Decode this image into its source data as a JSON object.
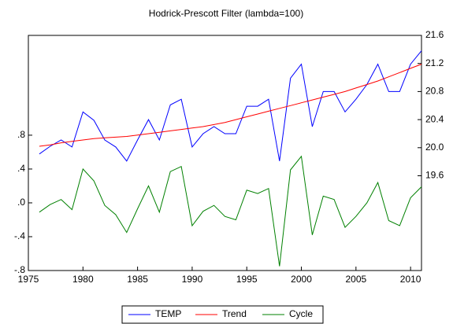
{
  "chart_data": {
    "type": "line",
    "title": "Hodrick-Prescott Filter (lambda=100)",
    "x": [
      1976,
      1977,
      1978,
      1979,
      1980,
      1981,
      1982,
      1983,
      1984,
      1985,
      1986,
      1987,
      1988,
      1989,
      1990,
      1991,
      1992,
      1993,
      1994,
      1995,
      1996,
      1997,
      1998,
      1999,
      2000,
      2001,
      2002,
      2003,
      2004,
      2005,
      2006,
      2007,
      2008,
      2009,
      2010,
      2011
    ],
    "series": [
      {
        "name": "TEMP",
        "color": "#0000ff",
        "axis": "y2",
        "values": [
          19.91,
          20.02,
          20.11,
          20.01,
          20.51,
          20.39,
          20.11,
          20.01,
          19.81,
          20.11,
          20.4,
          20.11,
          20.61,
          20.69,
          20.01,
          20.2,
          20.3,
          20.2,
          20.2,
          20.59,
          20.59,
          20.69,
          19.81,
          20.99,
          21.19,
          20.3,
          20.8,
          20.8,
          20.51,
          20.69,
          20.9,
          21.19,
          20.8,
          20.8,
          21.19,
          21.38
        ]
      },
      {
        "name": "Trend",
        "color": "#ff0000",
        "axis": "y2",
        "values": [
          20.02,
          20.04,
          20.07,
          20.09,
          20.11,
          20.13,
          20.14,
          20.15,
          20.16,
          20.18,
          20.2,
          20.22,
          20.24,
          20.26,
          20.28,
          20.3,
          20.33,
          20.36,
          20.4,
          20.44,
          20.48,
          20.52,
          20.56,
          20.6,
          20.64,
          20.68,
          20.72,
          20.76,
          20.8,
          20.85,
          20.9,
          20.95,
          21.01,
          21.07,
          21.13,
          21.19
        ]
      },
      {
        "name": "Cycle",
        "color": "#008000",
        "values": [
          -0.11,
          -0.02,
          0.04,
          -0.08,
          0.4,
          0.26,
          -0.03,
          -0.14,
          -0.35,
          -0.07,
          0.2,
          -0.11,
          0.37,
          0.43,
          -0.27,
          -0.1,
          -0.03,
          -0.16,
          -0.2,
          0.15,
          0.11,
          0.17,
          -0.75,
          0.39,
          0.55,
          -0.38,
          0.08,
          0.04,
          -0.29,
          -0.16,
          0.0,
          0.24,
          -0.21,
          -0.27,
          0.06,
          0.19
        ]
      }
    ],
    "xlim": [
      1975,
      2011
    ],
    "xticks": [
      1975,
      1980,
      1985,
      1990,
      1995,
      2000,
      2005,
      2010
    ],
    "ylim": [
      -0.8,
      1.98
    ],
    "yticks": [
      {
        "value": 0.8,
        "label": ".8"
      },
      {
        "value": 0.4,
        "label": ".4"
      },
      {
        "value": 0,
        "label": ".0"
      },
      {
        "value": -0.4,
        "label": "-.4"
      },
      {
        "value": -0.8,
        "label": "-.8"
      }
    ],
    "y2lim": [
      18.25,
      21.6
    ],
    "y2ticks": [
      19.6,
      {
        "value": 20,
        "label": "20.0"
      },
      20.4,
      20.8,
      21.2,
      21.6
    ],
    "grid": false,
    "legend": "bottom"
  }
}
